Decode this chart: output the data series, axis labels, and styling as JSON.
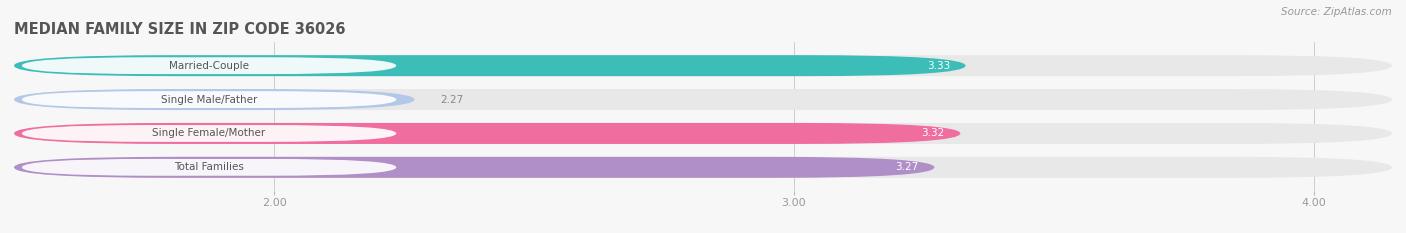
{
  "title": "MEDIAN FAMILY SIZE IN ZIP CODE 36026",
  "source": "Source: ZipAtlas.com",
  "categories": [
    "Married-Couple",
    "Single Male/Father",
    "Single Female/Mother",
    "Total Families"
  ],
  "values": [
    3.33,
    2.27,
    3.32,
    3.27
  ],
  "bar_colors": [
    "#3dbdb8",
    "#b3c7e8",
    "#f06da0",
    "#b08ec8"
  ],
  "bar_bg_color": "#e8e8e8",
  "xlim_left": 1.5,
  "xlim_right": 4.15,
  "xticks": [
    2.0,
    3.0,
    4.0
  ],
  "xtick_labels": [
    "2.00",
    "3.00",
    "4.00"
  ],
  "bar_height": 0.62,
  "category_fontsize": 7.5,
  "value_fontsize": 7.5,
  "title_fontsize": 10.5,
  "source_fontsize": 7.5,
  "bg_color": "#f7f7f7",
  "outside_threshold": 2.6,
  "label_pill_color": "#ffffff",
  "label_text_color": "#555555",
  "value_inside_color": "#ffffff",
  "value_outside_color": "#888888",
  "grid_color": "#cccccc",
  "tick_label_color": "#999999"
}
